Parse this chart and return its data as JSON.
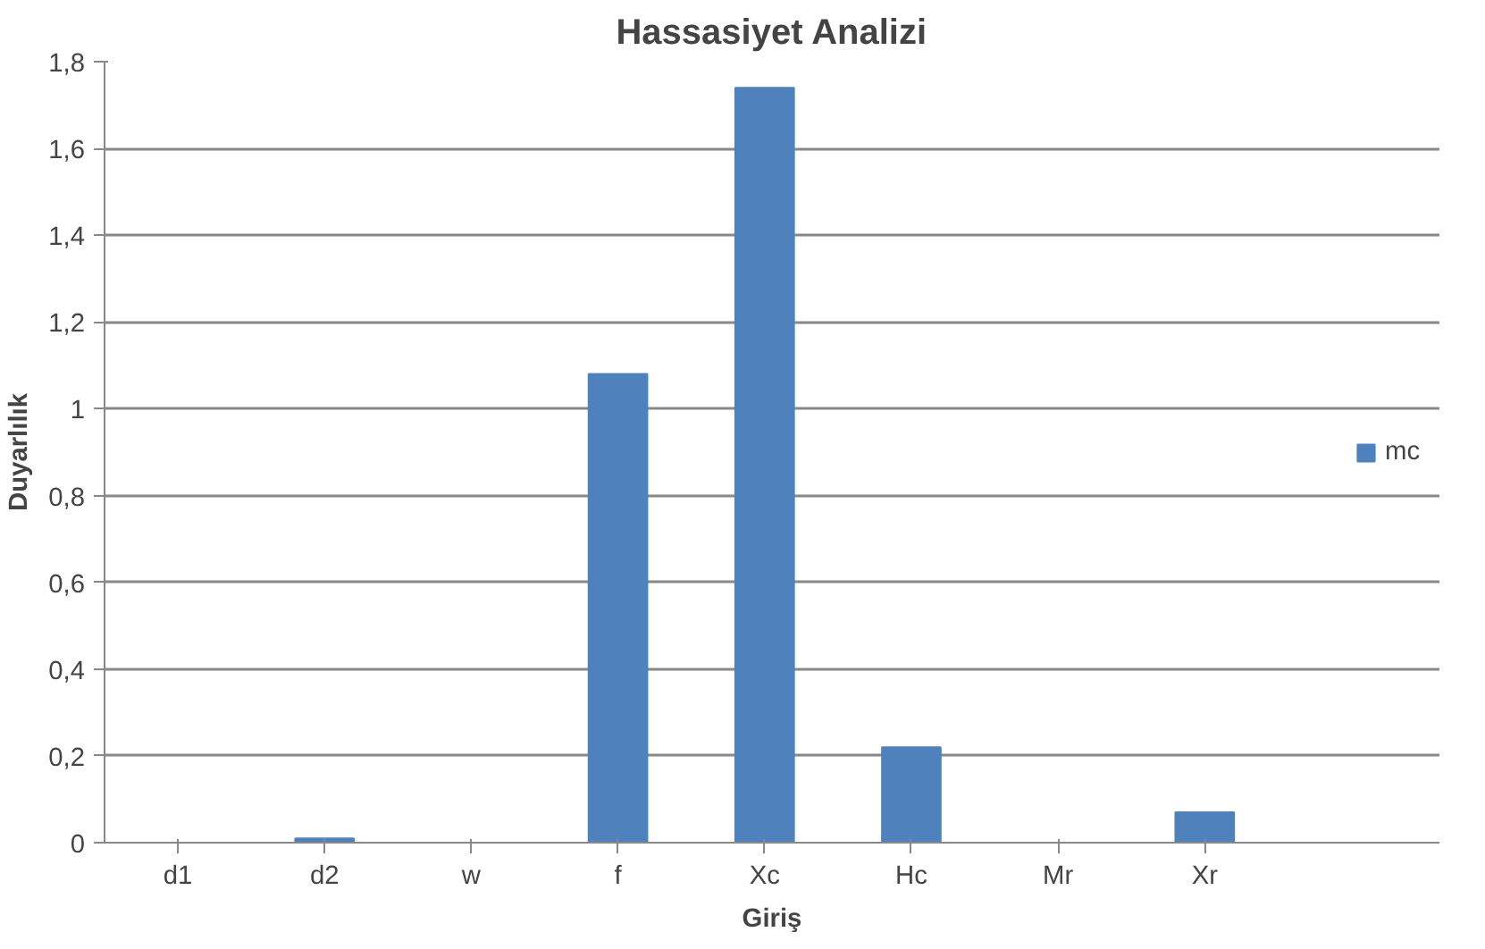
{
  "chart_data": {
    "type": "bar",
    "title": "Hassasiyet Analizi",
    "xlabel": "Giriş",
    "ylabel": "Duyarlılık",
    "categories": [
      "d1",
      "d2",
      "w",
      "f",
      "Xc",
      "Hc",
      "Mr",
      "Xr"
    ],
    "series": [
      {
        "name": "mc",
        "color": "#4f81bd",
        "values": [
          0,
          0.01,
          0,
          1.08,
          1.74,
          0.22,
          0,
          0.07
        ]
      }
    ],
    "ylim": [
      0,
      1.8
    ],
    "yticks": [
      {
        "value": 0,
        "label": "0"
      },
      {
        "value": 0.2,
        "label": "0,2"
      },
      {
        "value": 0.4,
        "label": "0,4"
      },
      {
        "value": 0.6,
        "label": "0,6"
      },
      {
        "value": 0.8,
        "label": "0,8"
      },
      {
        "value": 1,
        "label": "1"
      },
      {
        "value": 1.2,
        "label": "1,2"
      },
      {
        "value": 1.4,
        "label": "1,4"
      },
      {
        "value": 1.6,
        "label": "1,6"
      },
      {
        "value": 1.8,
        "label": "1,8"
      }
    ],
    "grid": "y",
    "legend": "right"
  }
}
